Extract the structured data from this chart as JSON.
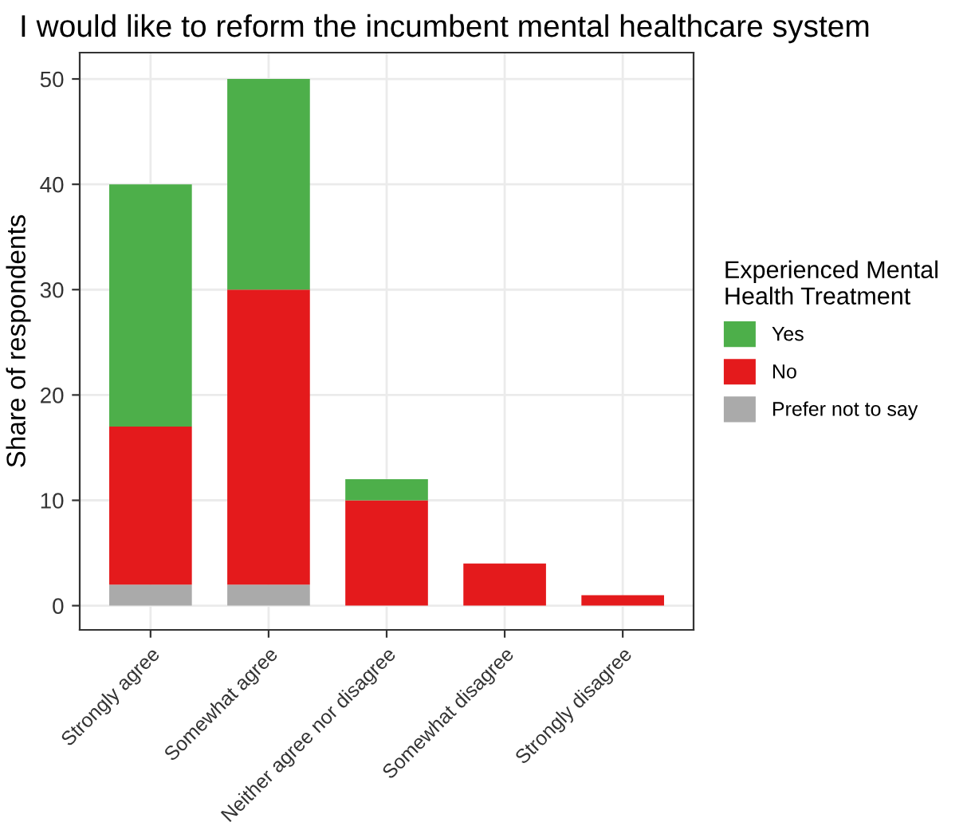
{
  "chart_data": {
    "type": "bar",
    "title": "I would like to reform the incumbent mental healthcare system",
    "ylabel": "Share of respondents",
    "legend_title": "Experienced Mental\nHealth Treatment",
    "categories": [
      "Strongly agree",
      "Somewhat agree",
      "Neither agree nor disagree",
      "Somewhat disagree",
      "Strongly disagree"
    ],
    "stacked": true,
    "series": [
      {
        "name": "Prefer not to say",
        "color": "#aaaaaa",
        "values": [
          2,
          2,
          0,
          0,
          0
        ]
      },
      {
        "name": "No",
        "color": "#e41a1c",
        "values": [
          15,
          28,
          10,
          4,
          1
        ]
      },
      {
        "name": "Yes",
        "color": "#4daf4a",
        "values": [
          23,
          20,
          2,
          0,
          0
        ]
      }
    ],
    "ylim": [
      -2.3,
      52.5
    ],
    "yticks": [
      0,
      10,
      20,
      30,
      40,
      50
    ],
    "grid": true,
    "legend": "right"
  }
}
